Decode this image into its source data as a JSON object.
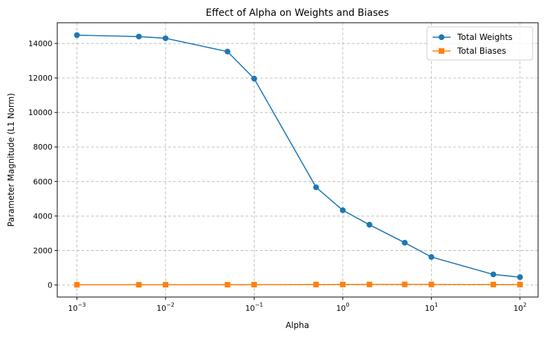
{
  "chart_data": {
    "type": "line",
    "title": "Effect of Alpha on Weights and Biases",
    "xlabel": "Alpha",
    "ylabel": "Parameter Magnitude (L1 Norm)",
    "xscale": "log",
    "xlim": [
      0.0006,
      160
    ],
    "ylim": [
      -700,
      15200
    ],
    "xticks": [
      {
        "value": 0.001,
        "base": "10",
        "exp": "−3"
      },
      {
        "value": 0.01,
        "base": "10",
        "exp": "−2"
      },
      {
        "value": 0.1,
        "base": "10",
        "exp": "−1"
      },
      {
        "value": 1,
        "base": "10",
        "exp": "0"
      },
      {
        "value": 10,
        "base": "10",
        "exp": "1"
      },
      {
        "value": 100,
        "base": "10",
        "exp": "2"
      }
    ],
    "yticks": [
      0,
      2000,
      4000,
      6000,
      8000,
      10000,
      12000,
      14000
    ],
    "ytick_labels": [
      "0",
      "2000",
      "4000",
      "6000",
      "8000",
      "10000",
      "12000",
      "14000"
    ],
    "x": [
      0.001,
      0.005,
      0.01,
      0.05,
      0.1,
      0.5,
      1,
      2,
      5,
      10,
      50,
      100
    ],
    "series": [
      {
        "name": "Total Weights",
        "color": "#1f77b4",
        "marker": "circle",
        "values": [
          14480,
          14400,
          14300,
          13530,
          11960,
          5660,
          4330,
          3490,
          2450,
          1620,
          610,
          450
        ]
      },
      {
        "name": "Total Biases",
        "color": "#ff7f0e",
        "marker": "square",
        "values": [
          10,
          12,
          12,
          15,
          18,
          25,
          28,
          30,
          32,
          30,
          25,
          22
        ]
      }
    ],
    "grid": true,
    "legend_position": "top-right"
  }
}
